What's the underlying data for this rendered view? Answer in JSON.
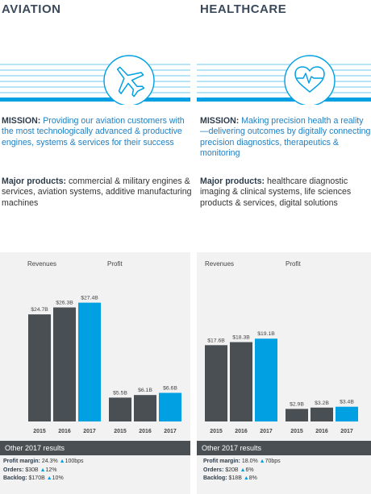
{
  "sections": [
    {
      "title": "AVIATION",
      "icon": "airplane-icon",
      "mission_label": "MISSION:",
      "mission_text": "Providing our aviation customers with the most technologically advanced & productive engines, systems & services for their success",
      "products_label": "Major products:",
      "products_text": "commercial & military engines & services, aviation systems, additive manufacturing machines",
      "revenues_label": "Revenues",
      "profit_label": "Profit",
      "other_title": "Other 2017 results",
      "stats": [
        {
          "label": "Profit margin:",
          "value": "24.3%",
          "change": "100bps"
        },
        {
          "label": "Orders:",
          "value": "$30B",
          "change": "12%"
        },
        {
          "label": "Backlog:",
          "value": "$170B",
          "change": "10%"
        }
      ]
    },
    {
      "title": "HEALTHCARE",
      "icon": "heart-pulse-icon",
      "mission_label": "MISSION:",
      "mission_text": "Making precision health a reality—delivering outcomes by digitally connecting precision diagnostics, therapeutics & monitoring",
      "products_label": "Major products:",
      "products_text": "healthcare diagnostic imaging & clinical systems, life sciences products & services, digital solutions",
      "revenues_label": "Revenues",
      "profit_label": "Profit",
      "other_title": "Other 2017 results",
      "stats": [
        {
          "label": "Profit margin:",
          "value": "18.0%",
          "change": "70bps"
        },
        {
          "label": "Orders:",
          "value": "$20B",
          "change": "6%"
        },
        {
          "label": "Backlog:",
          "value": "$18B",
          "change": "8%"
        }
      ]
    }
  ],
  "colors": {
    "dark": "#4a4f54",
    "accent": "#00a0e3",
    "title": "#3a4a5a",
    "mission": "#1f7fc2"
  },
  "chart_data": [
    {
      "type": "bar",
      "section": "AVIATION",
      "categories": [
        "2015",
        "2016",
        "2017"
      ],
      "series": [
        {
          "name": "Revenues",
          "values": [
            24.7,
            26.3,
            27.4
          ],
          "labels": [
            "$24.7B",
            "$26.3B",
            "$27.4B"
          ]
        },
        {
          "name": "Profit",
          "values": [
            5.5,
            6.1,
            6.6
          ],
          "labels": [
            "$5.5B",
            "$6.1B",
            "$6.6B"
          ]
        }
      ]
    },
    {
      "type": "bar",
      "section": "HEALTHCARE",
      "categories": [
        "2015",
        "2016",
        "2017"
      ],
      "series": [
        {
          "name": "Revenues",
          "values": [
            17.6,
            18.3,
            19.1
          ],
          "labels": [
            "$17.6B",
            "$18.3B",
            "$19.1B"
          ]
        },
        {
          "name": "Profit",
          "values": [
            2.9,
            3.2,
            3.4
          ],
          "labels": [
            "$2.9B",
            "$3.2B",
            "$3.4B"
          ]
        }
      ]
    }
  ]
}
